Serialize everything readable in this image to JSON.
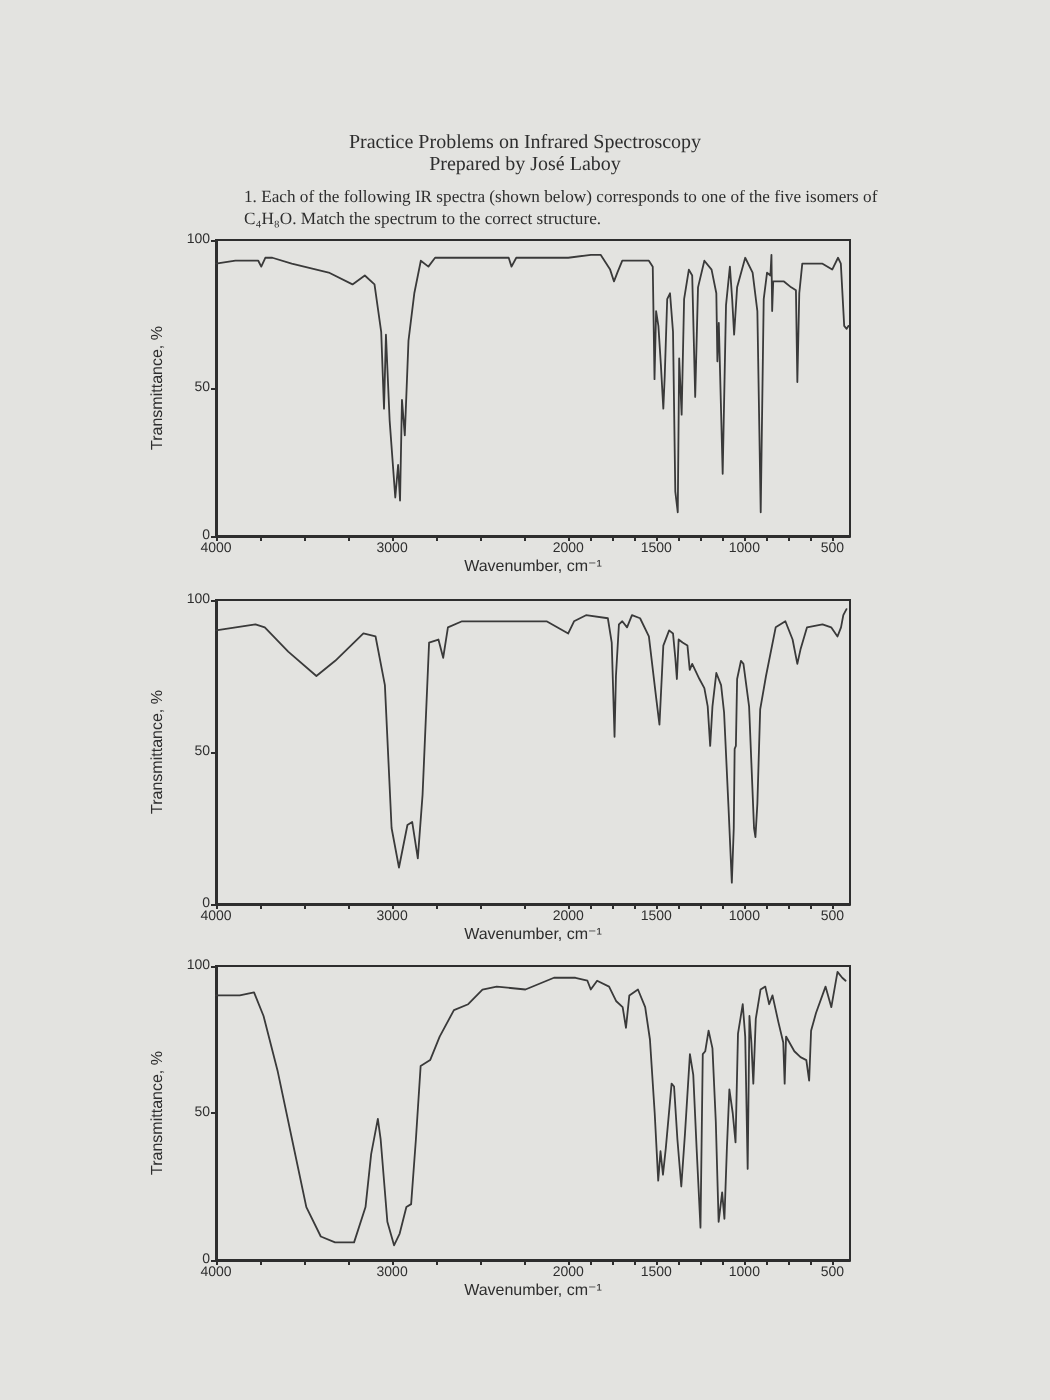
{
  "chart_data": [
    {
      "type": "line",
      "title": "Practice Problems on Infrared Spectroscopy",
      "subtitle": "Prepared by José Laboy",
      "annotations": [
        "1. Each of the following IR spectra (shown below) corresponds to one of the five isomers of C₄H₈O. Match the spectrum to the correct structure."
      ],
      "xlabel": "Wavenumber, cm⁻¹",
      "ylabel": "Transmittance, %",
      "xlim": [
        4000,
        400
      ],
      "xticks": [
        4000,
        {
          "value": 3750,
          "label": null
        },
        {
          "value": 3500,
          "label": null
        },
        {
          "value": 3250,
          "label": null
        },
        3000,
        {
          "value": 2750,
          "label": null
        },
        {
          "value": 2500,
          "label": null
        },
        {
          "value": 2250,
          "label": null
        },
        2000,
        {
          "value": 1875,
          "label": null
        },
        {
          "value": 1750,
          "label": null
        },
        {
          "value": 1625,
          "label": null
        },
        1500,
        {
          "value": 1375,
          "label": null
        },
        {
          "value": 1250,
          "label": null
        },
        {
          "value": 1125,
          "label": null
        },
        1000,
        {
          "value": 875,
          "label": null
        },
        {
          "value": 750,
          "label": null
        },
        {
          "value": 625,
          "label": null
        },
        500
      ],
      "ylim": [
        0,
        100
      ],
      "yticks": [
        0,
        50,
        100
      ],
      "series": [
        {
          "color": "#3a3a3a",
          "x": [
            4000,
            3890,
            3760,
            3743,
            3720,
            3680,
            3570,
            3360,
            3225,
            3155,
            3100,
            3062,
            3046,
            3035,
            3014,
            2982,
            2966,
            2955,
            2944,
            2928,
            2907,
            2874,
            2837,
            2794,
            2756,
            2338,
            2322,
            2295,
            2000,
            1871,
            1816,
            1762,
            1740,
            1721,
            1693,
            1542,
            1520,
            1510,
            1501,
            1488,
            1474,
            1460,
            1452,
            1438,
            1422,
            1405,
            1392,
            1378,
            1370,
            1356,
            1342,
            1315,
            1296,
            1279,
            1263,
            1227,
            1186,
            1159,
            1153,
            1145,
            1123,
            1104,
            1082,
            1069,
            1058,
            1041,
            995,
            953,
            926,
            907,
            890,
            871,
            852,
            846,
            842,
            836,
            775,
            734,
            707,
            699,
            688,
            671,
            556,
            501,
            468,
            452,
            433,
            419,
            408
          ],
          "values": [
            92,
            93,
            93,
            91,
            94,
            94,
            92,
            89,
            85,
            88,
            85,
            69,
            43,
            68,
            39,
            13,
            24,
            12,
            46,
            34,
            66,
            82,
            93,
            91,
            94,
            94,
            91,
            94,
            94,
            95,
            95,
            90,
            86,
            89,
            93,
            93,
            91,
            53,
            76,
            71,
            58,
            43,
            54,
            80,
            82,
            69,
            15,
            8,
            60,
            41,
            80,
            90,
            88,
            47,
            84,
            93,
            90,
            82,
            59,
            72,
            21,
            78,
            91,
            80,
            68,
            84,
            94,
            89,
            76,
            8,
            80,
            89,
            88,
            95,
            76,
            86,
            86,
            84,
            83,
            52,
            82,
            92,
            92,
            90,
            94,
            92,
            71,
            70,
            71
          ]
        }
      ]
    },
    {
      "type": "line",
      "xlabel": "Wavenumber, cm⁻¹",
      "ylabel": "Transmittance, %",
      "xlim": [
        4000,
        400
      ],
      "xticks": [
        4000,
        {
          "value": 3750,
          "label": null
        },
        {
          "value": 3500,
          "label": null
        },
        {
          "value": 3250,
          "label": null
        },
        3000,
        {
          "value": 2750,
          "label": null
        },
        {
          "value": 2500,
          "label": null
        },
        {
          "value": 2250,
          "label": null
        },
        2000,
        {
          "value": 1875,
          "label": null
        },
        {
          "value": 1750,
          "label": null
        },
        {
          "value": 1625,
          "label": null
        },
        1500,
        {
          "value": 1375,
          "label": null
        },
        {
          "value": 1250,
          "label": null
        },
        {
          "value": 1125,
          "label": null
        },
        1000,
        {
          "value": 875,
          "label": null
        },
        {
          "value": 750,
          "label": null
        },
        {
          "value": 625,
          "label": null
        },
        500
      ],
      "ylim": [
        0,
        100
      ],
      "yticks": [
        0,
        50,
        100
      ],
      "series": [
        {
          "color": "#3a3a3a",
          "x": [
            4000,
            3776,
            3723,
            3590,
            3430,
            3323,
            3163,
            3094,
            3041,
            3003,
            2961,
            2913,
            2886,
            2854,
            2827,
            2790,
            2737,
            2710,
            2683,
            2603,
            2230,
            2123,
            2000,
            1967,
            1899,
            1775,
            1753,
            1737,
            1729,
            1712,
            1693,
            1666,
            1638,
            1592,
            1542,
            1501,
            1482,
            1460,
            1427,
            1405,
            1392,
            1383,
            1373,
            1351,
            1323,
            1310,
            1296,
            1255,
            1227,
            1208,
            1194,
            1181,
            1159,
            1132,
            1115,
            1090,
            1071,
            1060,
            1055,
            1048,
            1041,
            1019,
            1005,
            973,
            945,
            937,
            926,
            910,
            877,
            822,
            767,
            726,
            699,
            680,
            644,
            556,
            507,
            471,
            451,
            438,
            420
          ],
          "values": [
            90,
            92,
            91,
            83,
            75,
            80,
            89,
            88,
            72,
            25,
            12,
            26,
            27,
            15,
            36,
            86,
            87,
            81,
            91,
            93,
            93,
            93,
            89,
            93,
            95,
            94,
            86,
            55,
            75,
            92,
            93,
            91,
            95,
            94,
            88,
            68,
            59,
            85,
            90,
            89,
            81,
            74,
            87,
            86,
            85,
            77,
            79,
            74,
            71,
            65,
            52,
            65,
            76,
            72,
            63,
            32,
            7,
            25,
            51,
            52,
            74,
            80,
            79,
            65,
            25,
            22,
            33,
            64,
            75,
            91,
            93,
            87,
            79,
            84,
            91,
            92,
            91,
            88,
            91,
            95,
            97
          ]
        }
      ]
    },
    {
      "type": "line",
      "xlabel": "Wavenumber, cm⁻¹",
      "ylabel": "Transmittance, %",
      "xlim": [
        4000,
        400
      ],
      "xticks": [
        4000,
        {
          "value": 3750,
          "label": null
        },
        {
          "value": 3500,
          "label": null
        },
        {
          "value": 3250,
          "label": null
        },
        3000,
        {
          "value": 2750,
          "label": null
        },
        {
          "value": 2500,
          "label": null
        },
        {
          "value": 2250,
          "label": null
        },
        2000,
        {
          "value": 1875,
          "label": null
        },
        {
          "value": 1750,
          "label": null
        },
        {
          "value": 1625,
          "label": null
        },
        1500,
        {
          "value": 1375,
          "label": null
        },
        {
          "value": 1250,
          "label": null
        },
        {
          "value": 1125,
          "label": null
        },
        1000,
        {
          "value": 875,
          "label": null
        },
        {
          "value": 750,
          "label": null
        },
        {
          "value": 625,
          "label": null
        },
        500
      ],
      "ylim": [
        0,
        100
      ],
      "yticks": [
        0,
        50,
        100
      ],
      "series": [
        {
          "color": "#3a3a3a",
          "x": [
            4000,
            3865,
            3784,
            3730,
            3649,
            3568,
            3487,
            3405,
            3324,
            3216,
            3151,
            3119,
            3081,
            3065,
            3027,
            2989,
            2957,
            2919,
            2892,
            2865,
            2838,
            2784,
            2730,
            2649,
            2568,
            2487,
            2406,
            2243,
            2081,
            2000,
            1959,
            1891,
            1872,
            1836,
            1768,
            1727,
            1691,
            1672,
            1653,
            1604,
            1563,
            1536,
            1509,
            1489,
            1476,
            1462,
            1446,
            1413,
            1399,
            1380,
            1358,
            1337,
            1309,
            1290,
            1271,
            1249,
            1236,
            1222,
            1203,
            1181,
            1162,
            1146,
            1126,
            1113,
            1099,
            1085,
            1066,
            1050,
            1036,
            1009,
            995,
            981,
            971,
            960,
            949,
            935,
            908,
            881,
            859,
            840,
            807,
            779,
            771,
            763,
            716,
            681,
            648,
            632,
            621,
            593,
            539,
            506,
            471,
            444,
            425
          ],
          "values": [
            90,
            90,
            91,
            83,
            64,
            41,
            18,
            8,
            6,
            6,
            18,
            36,
            48,
            41,
            13,
            5,
            9,
            18,
            19,
            41,
            66,
            68,
            76,
            85,
            87,
            92,
            93,
            92,
            96,
            96,
            96,
            95,
            92,
            95,
            93,
            88,
            86,
            79,
            90,
            92,
            86,
            75,
            50,
            27,
            37,
            29,
            38,
            60,
            59,
            41,
            25,
            43,
            70,
            63,
            38,
            11,
            70,
            71,
            78,
            72,
            47,
            13,
            23,
            14,
            38,
            58,
            50,
            40,
            77,
            87,
            76,
            31,
            83,
            74,
            60,
            82,
            92,
            93,
            87,
            90,
            81,
            74,
            60,
            76,
            71,
            69,
            68,
            61,
            78,
            84,
            93,
            86,
            98,
            96,
            95
          ]
        }
      ]
    }
  ]
}
